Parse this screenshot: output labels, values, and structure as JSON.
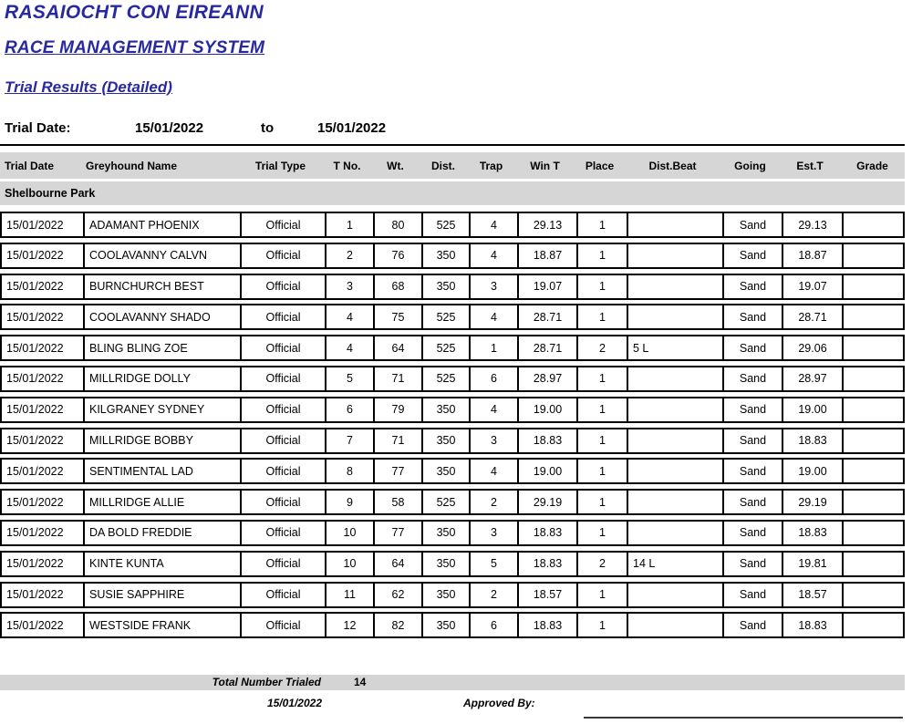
{
  "header": {
    "org_title": "RASAIOCHT CON EIREANN",
    "system_title": "RACE MANAGEMENT SYSTEM",
    "report_title": "Trial Results (Detailed)",
    "accent_color": "#2828A0",
    "bar_color": "#D6D6D6"
  },
  "filters": {
    "trial_date_label": "Trial Date:",
    "date_from": "15/01/2022",
    "to_label": "to",
    "date_to": "15/01/2022"
  },
  "table": {
    "columns": [
      "Trial Date",
      "Greyhound Name",
      "Trial Type",
      "T No.",
      "Wt.",
      "Dist.",
      "Trap",
      "Win T",
      "Place",
      "Dist.Beat",
      "Going",
      "Est.T",
      "Grade"
    ],
    "section": "Shelbourne Park",
    "rows": [
      [
        "15/01/2022",
        "ADAMANT PHOENIX",
        "Official",
        "1",
        "80",
        "525",
        "4",
        "29.13",
        "1",
        "",
        "Sand",
        "29.13",
        ""
      ],
      [
        "15/01/2022",
        "COOLAVANNY CALVN",
        "Official",
        "2",
        "76",
        "350",
        "4",
        "18.87",
        "1",
        "",
        "Sand",
        "18.87",
        ""
      ],
      [
        "15/01/2022",
        "BURNCHURCH BEST",
        "Official",
        "3",
        "68",
        "350",
        "3",
        "19.07",
        "1",
        "",
        "Sand",
        "19.07",
        ""
      ],
      [
        "15/01/2022",
        "COOLAVANNY SHADO",
        "Official",
        "4",
        "75",
        "525",
        "4",
        "28.71",
        "1",
        "",
        "Sand",
        "28.71",
        ""
      ],
      [
        "15/01/2022",
        "BLING BLING ZOE",
        "Official",
        "4",
        "64",
        "525",
        "1",
        "28.71",
        "2",
        "5 L",
        "Sand",
        "29.06",
        ""
      ],
      [
        "15/01/2022",
        "MILLRIDGE DOLLY",
        "Official",
        "5",
        "71",
        "525",
        "6",
        "28.97",
        "1",
        "",
        "Sand",
        "28.97",
        ""
      ],
      [
        "15/01/2022",
        "KILGRANEY SYDNEY",
        "Official",
        "6",
        "79",
        "350",
        "4",
        "19.00",
        "1",
        "",
        "Sand",
        "19.00",
        ""
      ],
      [
        "15/01/2022",
        "MILLRIDGE BOBBY",
        "Official",
        "7",
        "71",
        "350",
        "3",
        "18.83",
        "1",
        "",
        "Sand",
        "18.83",
        ""
      ],
      [
        "15/01/2022",
        "SENTIMENTAL LAD",
        "Official",
        "8",
        "77",
        "350",
        "4",
        "19.00",
        "1",
        "",
        "Sand",
        "19.00",
        ""
      ],
      [
        "15/01/2022",
        "MILLRIDGE ALLIE",
        "Official",
        "9",
        "58",
        "525",
        "2",
        "29.19",
        "1",
        "",
        "Sand",
        "29.19",
        ""
      ],
      [
        "15/01/2022",
        "DA BOLD FREDDIE",
        "Official",
        "10",
        "77",
        "350",
        "3",
        "18.83",
        "1",
        "",
        "Sand",
        "18.83",
        ""
      ],
      [
        "15/01/2022",
        "KINTE KUNTA",
        "Official",
        "10",
        "64",
        "350",
        "5",
        "18.83",
        "2",
        "14 L",
        "Sand",
        "19.81",
        ""
      ],
      [
        "15/01/2022",
        "SUSIE SAPPHIRE",
        "Official",
        "11",
        "62",
        "350",
        "2",
        "18.57",
        "1",
        "",
        "Sand",
        "18.57",
        ""
      ],
      [
        "15/01/2022",
        "WESTSIDE FRANK",
        "Official",
        "12",
        "82",
        "350",
        "6",
        "18.83",
        "1",
        "",
        "Sand",
        "18.83",
        ""
      ]
    ]
  },
  "footer": {
    "total_label": "Total Number Trialed",
    "total_value": "14",
    "report_date": "15/01/2022",
    "approved_label": "Approved By:"
  }
}
